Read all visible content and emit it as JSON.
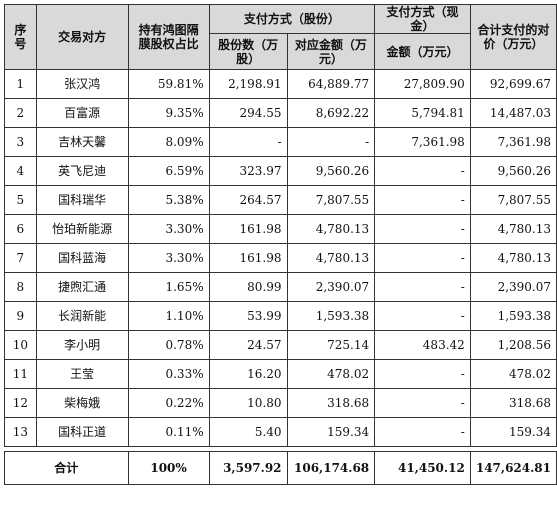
{
  "headers": {
    "seq": "序号",
    "party": "交易对方",
    "ratio": "持有鸿图隔膜股权占比",
    "stock_pay": "支付方式（股份）",
    "cash_pay": "支付方式（现金）",
    "total_price": "合计支付的对价（万元）",
    "shares": "股份数（万股）",
    "share_amount": "对应金额（万元）",
    "cash_amount": "金额（万元）"
  },
  "rows": [
    {
      "seq": "1",
      "party": "张汉鸿",
      "ratio": "59.81%",
      "shares": "2,198.91",
      "share_amount": "64,889.77",
      "cash": "27,809.90",
      "total": "92,699.67"
    },
    {
      "seq": "2",
      "party": "百富源",
      "ratio": "9.35%",
      "shares": "294.55",
      "share_amount": "8,692.22",
      "cash": "5,794.81",
      "total": "14,487.03"
    },
    {
      "seq": "3",
      "party": "吉林天馨",
      "ratio": "8.09%",
      "shares": "-",
      "share_amount": "-",
      "cash": "7,361.98",
      "total": "7,361.98"
    },
    {
      "seq": "4",
      "party": "英飞尼迪",
      "ratio": "6.59%",
      "shares": "323.97",
      "share_amount": "9,560.26",
      "cash": "-",
      "total": "9,560.26"
    },
    {
      "seq": "5",
      "party": "国科瑞华",
      "ratio": "5.38%",
      "shares": "264.57",
      "share_amount": "7,807.55",
      "cash": "-",
      "total": "7,807.55"
    },
    {
      "seq": "6",
      "party": "怡珀新能源",
      "ratio": "3.30%",
      "shares": "161.98",
      "share_amount": "4,780.13",
      "cash": "-",
      "total": "4,780.13"
    },
    {
      "seq": "7",
      "party": "国科蓝海",
      "ratio": "3.30%",
      "shares": "161.98",
      "share_amount": "4,780.13",
      "cash": "-",
      "total": "4,780.13"
    },
    {
      "seq": "8",
      "party": "捷煦汇通",
      "ratio": "1.65%",
      "shares": "80.99",
      "share_amount": "2,390.07",
      "cash": "-",
      "total": "2,390.07"
    },
    {
      "seq": "9",
      "party": "长润新能",
      "ratio": "1.10%",
      "shares": "53.99",
      "share_amount": "1,593.38",
      "cash": "-",
      "total": "1,593.38"
    },
    {
      "seq": "10",
      "party": "李小明",
      "ratio": "0.78%",
      "shares": "24.57",
      "share_amount": "725.14",
      "cash": "483.42",
      "total": "1,208.56"
    },
    {
      "seq": "11",
      "party": "王莹",
      "ratio": "0.33%",
      "shares": "16.20",
      "share_amount": "478.02",
      "cash": "-",
      "total": "478.02"
    },
    {
      "seq": "12",
      "party": "柴梅娥",
      "ratio": "0.22%",
      "shares": "10.80",
      "share_amount": "318.68",
      "cash": "-",
      "total": "318.68"
    },
    {
      "seq": "13",
      "party": "国科正道",
      "ratio": "0.11%",
      "shares": "5.40",
      "share_amount": "159.34",
      "cash": "-",
      "total": "159.34"
    }
  ],
  "totals": {
    "label": "合计",
    "ratio": "100%",
    "shares": "3,597.92",
    "share_amount": "106,174.68",
    "cash": "41,450.12",
    "total": "147,624.81"
  }
}
